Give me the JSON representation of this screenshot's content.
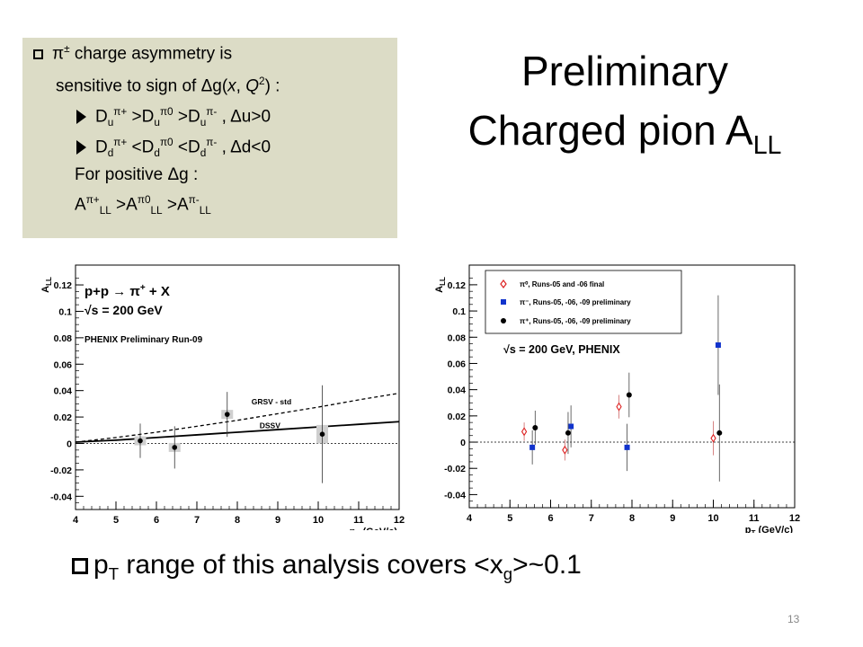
{
  "info_box": {
    "line1": {
      "pi": "π",
      "pm": "±",
      "rest": " charge asymmetry is"
    },
    "line2": {
      "pre": "sensitive to sign of Δg(",
      "x": "x",
      "comma": ", ",
      "Q": "Q",
      "exp": "2",
      "post": ")  :"
    },
    "line3": {
      "D": "D",
      "sub": "u",
      "sup1": "π+",
      "mid1": " >D",
      "sup2": "π0",
      "mid2": " >D",
      "sup3": "π-",
      "post": " , Δu>0"
    },
    "line4": {
      "D": "D",
      "sub": "d",
      "sup1": "π+",
      "mid1": " <D",
      "sup2": "π0",
      "mid2": " <D",
      "sup3": "π-",
      "post": " , Δd<0"
    },
    "line5": "For positive Δg :",
    "line6": {
      "A": "A",
      "sup1": "π+",
      "sub": "LL",
      "mid": " >A",
      "sup2": "π0",
      "sup3": "π-"
    }
  },
  "title": {
    "line1": "Preliminary",
    "line2": "Charged pion A",
    "line2_sub": "LL"
  },
  "bottom_text": {
    "pre": "p",
    "sub1": "T",
    "mid": " range of this analysis covers <x",
    "sub2": "g",
    "post": ">~0.1"
  },
  "page_number": "13",
  "colors": {
    "box_bg": "#dcdcc6",
    "pi0": "#dd2222",
    "pim": "#1133cc",
    "pip": "#000000"
  },
  "chart_data": [
    {
      "type": "scatter",
      "ylabel": "A",
      "ylabel_sub": "LL",
      "xlabel": "p",
      "xlabel_sub": "T",
      "xlabel_unit": " (GeV/c)",
      "xlim": [
        4,
        12
      ],
      "ylim": [
        -0.05,
        0.135
      ],
      "xticks": [
        "4",
        "5",
        "6",
        "7",
        "8",
        "9",
        "10",
        "11",
        "12"
      ],
      "yticks": [
        "-0.04",
        "-0.02",
        "0",
        "0.02",
        "0.04",
        "0.06",
        "0.08",
        "0.1",
        "0.12"
      ],
      "ytick_values": [
        -0.04,
        -0.02,
        0,
        0.02,
        0.04,
        0.06,
        0.08,
        0.1,
        0.12
      ],
      "xtick_values": [
        4,
        5,
        6,
        7,
        8,
        9,
        10,
        11,
        12
      ],
      "annotations": {
        "reaction": "p+p → π",
        "reaction_sup": "+",
        "reaction_post": " + X",
        "energy": "√s = 200 GeV",
        "label": "PHENIX Preliminary Run-09"
      },
      "curves": [
        {
          "name": "GRSV - std",
          "style": "dashed",
          "x": [
            4,
            5,
            6,
            7,
            8,
            9,
            10,
            11,
            12
          ],
          "y": [
            0.001,
            0.0045,
            0.0085,
            0.013,
            0.0175,
            0.0225,
            0.0275,
            0.033,
            0.038
          ]
        },
        {
          "name": "DSSV",
          "style": "solid",
          "x": [
            4,
            5,
            6,
            7,
            8,
            9,
            10,
            11,
            12
          ],
          "y": [
            0.001,
            0.0025,
            0.0045,
            0.0065,
            0.0085,
            0.0105,
            0.0125,
            0.0145,
            0.0165
          ]
        }
      ],
      "points": [
        {
          "x": 5.6,
          "y": 0.002,
          "err": 0.013,
          "syserr": 0.002
        },
        {
          "x": 6.45,
          "y": -0.003,
          "err": 0.016,
          "syserr": 0.002
        },
        {
          "x": 7.75,
          "y": 0.022,
          "err": 0.017,
          "syserr": 0.003
        },
        {
          "x": 10.1,
          "y": 0.007,
          "err": 0.037,
          "syserr": 0.007
        }
      ]
    },
    {
      "type": "scatter",
      "ylabel": "A",
      "ylabel_sub": "LL",
      "xlabel": "p",
      "xlabel_sub": "T",
      "xlabel_unit": " (GeV/c)",
      "xlim": [
        4,
        12
      ],
      "ylim": [
        -0.05,
        0.135
      ],
      "xticks": [
        "4",
        "5",
        "6",
        "7",
        "8",
        "9",
        "10",
        "11",
        "12"
      ],
      "yticks": [
        "-0.04",
        "-0.02",
        "0",
        "0.02",
        "0.04",
        "0.06",
        "0.08",
        "0.1",
        "0.12"
      ],
      "ytick_values": [
        -0.04,
        -0.02,
        0,
        0.02,
        0.04,
        0.06,
        0.08,
        0.1,
        0.12
      ],
      "xtick_values": [
        4,
        5,
        6,
        7,
        8,
        9,
        10,
        11,
        12
      ],
      "annotations": {
        "energy": "√s = 200 GeV, PHENIX"
      },
      "legend": [
        "π⁰, Runs-05 and -06 final",
        "π⁻, Runs-05, -06, -09 preliminary",
        "π⁺, Runs-05, -06, -09 preliminary"
      ],
      "legend_placement": "top-right",
      "series": [
        {
          "name": "π⁰, Runs-05 and -06 final",
          "marker": "open-diamond",
          "points": [
            {
              "x": 5.35,
              "y": 0.008,
              "err": 0.007
            },
            {
              "x": 6.35,
              "y": -0.006,
              "err": 0.008
            },
            {
              "x": 7.68,
              "y": 0.027,
              "err": 0.009
            },
            {
              "x": 10.0,
              "y": 0.003,
              "err": 0.013
            }
          ]
        },
        {
          "name": "π⁻, Runs-05, -06, -09 preliminary",
          "marker": "filled-square",
          "points": [
            {
              "x": 5.55,
              "y": -0.004,
              "err": 0.013
            },
            {
              "x": 6.5,
              "y": 0.012,
              "err": 0.016
            },
            {
              "x": 7.88,
              "y": -0.004,
              "err": 0.018
            },
            {
              "x": 10.12,
              "y": 0.074,
              "err": 0.038
            }
          ]
        },
        {
          "name": "π⁺, Runs-05, -06, -09 preliminary",
          "marker": "filled-circle",
          "points": [
            {
              "x": 5.62,
              "y": 0.011,
              "err": 0.013
            },
            {
              "x": 6.43,
              "y": 0.007,
              "err": 0.016
            },
            {
              "x": 7.93,
              "y": 0.036,
              "err": 0.017
            },
            {
              "x": 10.15,
              "y": 0.007,
              "err": 0.037
            }
          ]
        }
      ]
    }
  ]
}
